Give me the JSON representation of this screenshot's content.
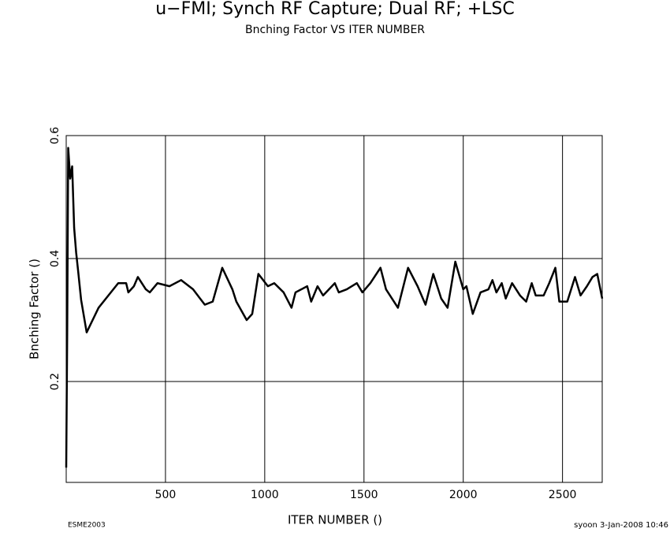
{
  "chart_data": {
    "type": "line",
    "title": "u−FMI; Synch RF Capture; Dual RF; +LSC",
    "subtitle": "Bnching Factor VS ITER NUMBER",
    "x_label": "ITER NUMBER ()",
    "y_label": "Bnching Factor ()",
    "footer_left": "ESME2003",
    "footer_right": "syoon  3-Jan-2008 10:46",
    "xlim": [
      0,
      2700
    ],
    "xticks": [
      500,
      1000,
      1500,
      2000,
      2500
    ],
    "ylim": [
      0.036,
      0.6
    ],
    "yticks": [
      0.2,
      0.4,
      0.6
    ],
    "grid": true,
    "color": "#000000",
    "x": [
      0,
      5,
      10,
      20,
      30,
      40,
      50,
      60,
      75,
      103,
      163,
      262,
      302,
      313,
      341,
      361,
      401,
      421,
      460,
      520,
      579,
      639,
      698,
      738,
      786,
      837,
      857,
      909,
      937,
      968,
      1016,
      1048,
      1095,
      1135,
      1155,
      1214,
      1234,
      1266,
      1294,
      1353,
      1373,
      1413,
      1464,
      1492,
      1532,
      1583,
      1611,
      1671,
      1722,
      1770,
      1810,
      1849,
      1889,
      1921,
      1960,
      2000,
      2016,
      2048,
      2087,
      2127,
      2147,
      2167,
      2194,
      2214,
      2246,
      2286,
      2317,
      2345,
      2365,
      2405,
      2433,
      2464,
      2484,
      2524,
      2563,
      2591,
      2623,
      2651,
      2675,
      2700
    ],
    "values": [
      0.06,
      0.28,
      0.58,
      0.53,
      0.55,
      0.45,
      0.41,
      0.38,
      0.333,
      0.28,
      0.32,
      0.36,
      0.36,
      0.345,
      0.355,
      0.37,
      0.35,
      0.345,
      0.36,
      0.355,
      0.365,
      0.35,
      0.325,
      0.33,
      0.385,
      0.35,
      0.33,
      0.3,
      0.31,
      0.375,
      0.355,
      0.36,
      0.345,
      0.32,
      0.345,
      0.355,
      0.33,
      0.355,
      0.34,
      0.36,
      0.345,
      0.35,
      0.36,
      0.345,
      0.36,
      0.385,
      0.35,
      0.32,
      0.385,
      0.355,
      0.325,
      0.375,
      0.335,
      0.32,
      0.395,
      0.35,
      0.355,
      0.31,
      0.345,
      0.35,
      0.365,
      0.345,
      0.36,
      0.335,
      0.36,
      0.34,
      0.33,
      0.36,
      0.34,
      0.34,
      0.36,
      0.385,
      0.33,
      0.33,
      0.37,
      0.34,
      0.355,
      0.37,
      0.375,
      0.335
    ]
  }
}
